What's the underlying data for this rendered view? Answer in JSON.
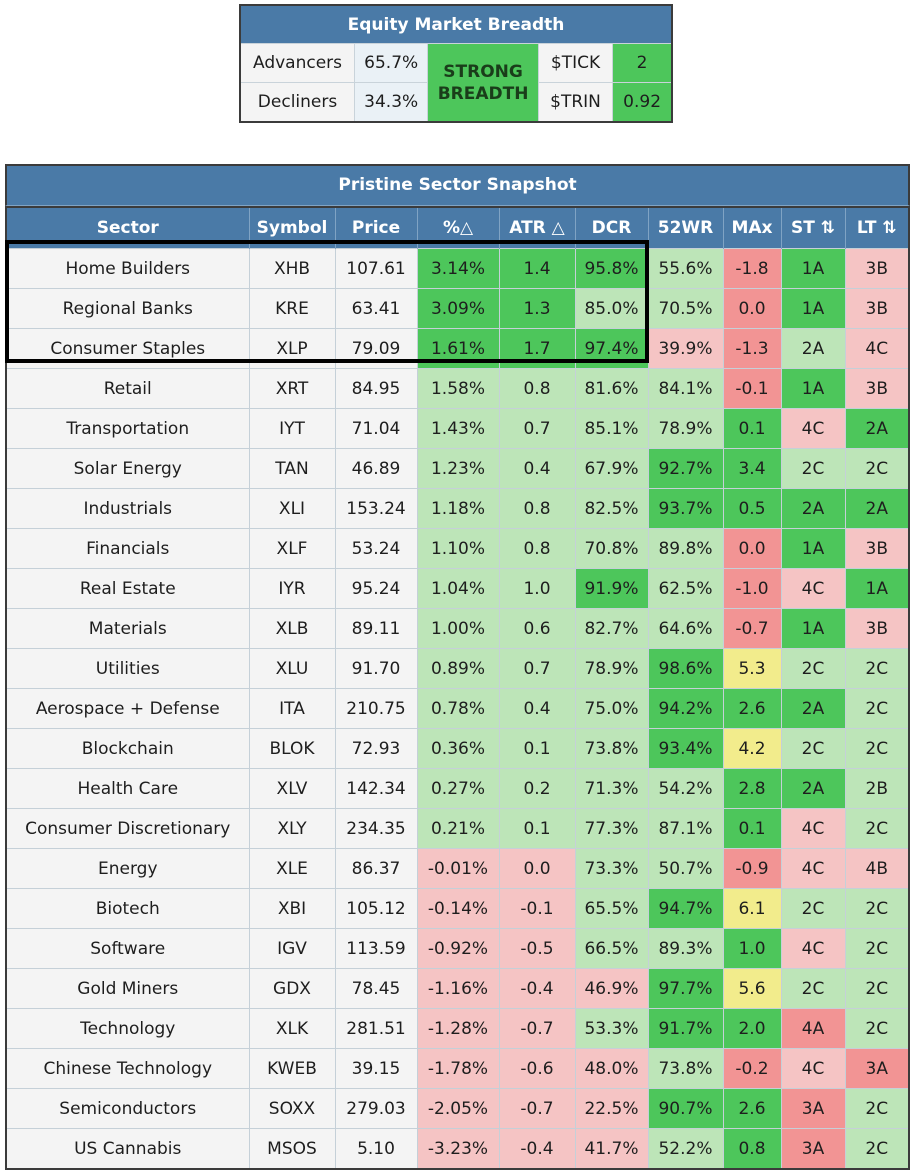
{
  "breadth": {
    "title": "Equity Market Breadth",
    "advancers_label": "Advancers",
    "advancers_value": "65.7%",
    "decliners_label": "Decliners",
    "decliners_value": "34.3%",
    "status": "STRONG BREADTH",
    "tick_label": "$TICK",
    "tick_value": "2",
    "trin_label": "$TRIN",
    "trin_value": "0.92"
  },
  "sector_table": {
    "title": "Pristine Sector Snapshot",
    "columns": [
      "Sector",
      "Symbol",
      "Price",
      "%△",
      "ATR △",
      "DCR",
      "52WR",
      "MAx",
      "ST ⇅",
      "LT ⇅"
    ],
    "rows": [
      {
        "sector": "Home Builders",
        "symbol": "XHB",
        "price": "107.61",
        "pct": "3.14%",
        "atr": "1.4",
        "dcr": "95.8%",
        "wr52": "55.6%",
        "max": "-1.8",
        "st": "1A",
        "lt": "3B"
      },
      {
        "sector": "Regional Banks",
        "symbol": "KRE",
        "price": "63.41",
        "pct": "3.09%",
        "atr": "1.3",
        "dcr": "85.0%",
        "wr52": "70.5%",
        "max": "0.0",
        "st": "1A",
        "lt": "3B"
      },
      {
        "sector": "Consumer Staples",
        "symbol": "XLP",
        "price": "79.09",
        "pct": "1.61%",
        "atr": "1.7",
        "dcr": "97.4%",
        "wr52": "39.9%",
        "max": "-1.3",
        "st": "2A",
        "lt": "4C"
      },
      {
        "sector": "Retail",
        "symbol": "XRT",
        "price": "84.95",
        "pct": "1.58%",
        "atr": "0.8",
        "dcr": "81.6%",
        "wr52": "84.1%",
        "max": "-0.1",
        "st": "1A",
        "lt": "3B"
      },
      {
        "sector": "Transportation",
        "symbol": "IYT",
        "price": "71.04",
        "pct": "1.43%",
        "atr": "0.7",
        "dcr": "85.1%",
        "wr52": "78.9%",
        "max": "0.1",
        "st": "4C",
        "lt": "2A"
      },
      {
        "sector": "Solar Energy",
        "symbol": "TAN",
        "price": "46.89",
        "pct": "1.23%",
        "atr": "0.4",
        "dcr": "67.9%",
        "wr52": "92.7%",
        "max": "3.4",
        "st": "2C",
        "lt": "2C"
      },
      {
        "sector": "Industrials",
        "symbol": "XLI",
        "price": "153.24",
        "pct": "1.18%",
        "atr": "0.8",
        "dcr": "82.5%",
        "wr52": "93.7%",
        "max": "0.5",
        "st": "2A",
        "lt": "2A"
      },
      {
        "sector": "Financials",
        "symbol": "XLF",
        "price": "53.24",
        "pct": "1.10%",
        "atr": "0.8",
        "dcr": "70.8%",
        "wr52": "89.8%",
        "max": "0.0",
        "st": "1A",
        "lt": "3B"
      },
      {
        "sector": "Real Estate",
        "symbol": "IYR",
        "price": "95.24",
        "pct": "1.04%",
        "atr": "1.0",
        "dcr": "91.9%",
        "wr52": "62.5%",
        "max": "-1.0",
        "st": "4C",
        "lt": "1A"
      },
      {
        "sector": "Materials",
        "symbol": "XLB",
        "price": "89.11",
        "pct": "1.00%",
        "atr": "0.6",
        "dcr": "82.7%",
        "wr52": "64.6%",
        "max": "-0.7",
        "st": "1A",
        "lt": "3B"
      },
      {
        "sector": "Utilities",
        "symbol": "XLU",
        "price": "91.70",
        "pct": "0.89%",
        "atr": "0.7",
        "dcr": "78.9%",
        "wr52": "98.6%",
        "max": "5.3",
        "st": "2C",
        "lt": "2C"
      },
      {
        "sector": "Aerospace + Defense",
        "symbol": "ITA",
        "price": "210.75",
        "pct": "0.78%",
        "atr": "0.4",
        "dcr": "75.0%",
        "wr52": "94.2%",
        "max": "2.6",
        "st": "2A",
        "lt": "2C"
      },
      {
        "sector": "Blockchain",
        "symbol": "BLOK",
        "price": "72.93",
        "pct": "0.36%",
        "atr": "0.1",
        "dcr": "73.8%",
        "wr52": "93.4%",
        "max": "4.2",
        "st": "2C",
        "lt": "2C"
      },
      {
        "sector": "Health Care",
        "symbol": "XLV",
        "price": "142.34",
        "pct": "0.27%",
        "atr": "0.2",
        "dcr": "71.3%",
        "wr52": "54.2%",
        "max": "2.8",
        "st": "2A",
        "lt": "2B"
      },
      {
        "sector": "Consumer Discretionary",
        "symbol": "XLY",
        "price": "234.35",
        "pct": "0.21%",
        "atr": "0.1",
        "dcr": "77.3%",
        "wr52": "87.1%",
        "max": "0.1",
        "st": "4C",
        "lt": "2C"
      },
      {
        "sector": "Energy",
        "symbol": "XLE",
        "price": "86.37",
        "pct": "-0.01%",
        "atr": "0.0",
        "dcr": "73.3%",
        "wr52": "50.7%",
        "max": "-0.9",
        "st": "4C",
        "lt": "4B"
      },
      {
        "sector": "Biotech",
        "symbol": "XBI",
        "price": "105.12",
        "pct": "-0.14%",
        "atr": "-0.1",
        "dcr": "65.5%",
        "wr52": "94.7%",
        "max": "6.1",
        "st": "2C",
        "lt": "2C"
      },
      {
        "sector": "Software",
        "symbol": "IGV",
        "price": "113.59",
        "pct": "-0.92%",
        "atr": "-0.5",
        "dcr": "66.5%",
        "wr52": "89.3%",
        "max": "1.0",
        "st": "4C",
        "lt": "2C"
      },
      {
        "sector": "Gold Miners",
        "symbol": "GDX",
        "price": "78.45",
        "pct": "-1.16%",
        "atr": "-0.4",
        "dcr": "46.9%",
        "wr52": "97.7%",
        "max": "5.6",
        "st": "2C",
        "lt": "2C"
      },
      {
        "sector": "Technology",
        "symbol": "XLK",
        "price": "281.51",
        "pct": "-1.28%",
        "atr": "-0.7",
        "dcr": "53.3%",
        "wr52": "91.7%",
        "max": "2.0",
        "st": "4A",
        "lt": "2C"
      },
      {
        "sector": "Chinese Technology",
        "symbol": "KWEB",
        "price": "39.15",
        "pct": "-1.78%",
        "atr": "-0.6",
        "dcr": "48.0%",
        "wr52": "73.8%",
        "max": "-0.2",
        "st": "4C",
        "lt": "3A"
      },
      {
        "sector": "Semiconductors",
        "symbol": "SOXX",
        "price": "279.03",
        "pct": "-2.05%",
        "atr": "-0.7",
        "dcr": "22.5%",
        "wr52": "90.7%",
        "max": "2.6",
        "st": "3A",
        "lt": "2C"
      },
      {
        "sector": "US Cannabis",
        "symbol": "MSOS",
        "price": "5.10",
        "pct": "-3.23%",
        "atr": "-0.4",
        "dcr": "41.7%",
        "wr52": "52.2%",
        "max": "0.8",
        "st": "3A",
        "lt": "2C"
      }
    ],
    "cell_colors": [
      [
        "g2",
        "g2",
        "g2",
        "g1",
        "r2",
        "g2",
        "r1"
      ],
      [
        "g2",
        "g2",
        "g1",
        "g1",
        "r2",
        "g2",
        "r1"
      ],
      [
        "g2",
        "g2",
        "g2",
        "r1",
        "r2",
        "g1",
        "r1"
      ],
      [
        "g1",
        "g1",
        "g1",
        "g1",
        "r2",
        "g2",
        "r1"
      ],
      [
        "g1",
        "g1",
        "g1",
        "g1",
        "g2",
        "r1",
        "g2"
      ],
      [
        "g1",
        "g1",
        "g1",
        "g2",
        "g2",
        "g1",
        "g1"
      ],
      [
        "g1",
        "g1",
        "g1",
        "g2",
        "g2",
        "g2",
        "g2"
      ],
      [
        "g1",
        "g1",
        "g1",
        "g1",
        "r2",
        "g2",
        "r1"
      ],
      [
        "g1",
        "g1",
        "g2",
        "g1",
        "r2",
        "r1",
        "g2"
      ],
      [
        "g1",
        "g1",
        "g1",
        "g1",
        "r2",
        "g2",
        "r1"
      ],
      [
        "g1",
        "g1",
        "g1",
        "g2",
        "y1",
        "g1",
        "g1"
      ],
      [
        "g1",
        "g1",
        "g1",
        "g2",
        "g2",
        "g2",
        "g1"
      ],
      [
        "g1",
        "g1",
        "g1",
        "g2",
        "y1",
        "g1",
        "g1"
      ],
      [
        "g1",
        "g1",
        "g1",
        "g1",
        "g2",
        "g2",
        "g1"
      ],
      [
        "g1",
        "g1",
        "g1",
        "g1",
        "g2",
        "r1",
        "g1"
      ],
      [
        "r1",
        "r1",
        "g1",
        "g1",
        "r2",
        "r1",
        "r1"
      ],
      [
        "r1",
        "r1",
        "g1",
        "g2",
        "y1",
        "g1",
        "g1"
      ],
      [
        "r1",
        "r1",
        "g1",
        "g1",
        "g2",
        "r1",
        "g1"
      ],
      [
        "r1",
        "r1",
        "r1",
        "g2",
        "y1",
        "g1",
        "g1"
      ],
      [
        "r1",
        "r1",
        "g1",
        "g2",
        "g2",
        "r2",
        "g1"
      ],
      [
        "r1",
        "r1",
        "r1",
        "g1",
        "r2",
        "r1",
        "r2"
      ],
      [
        "r1",
        "r1",
        "r1",
        "g2",
        "g2",
        "r2",
        "g1"
      ],
      [
        "r1",
        "r1",
        "r1",
        "g1",
        "g2",
        "r2",
        "g1"
      ]
    ]
  }
}
